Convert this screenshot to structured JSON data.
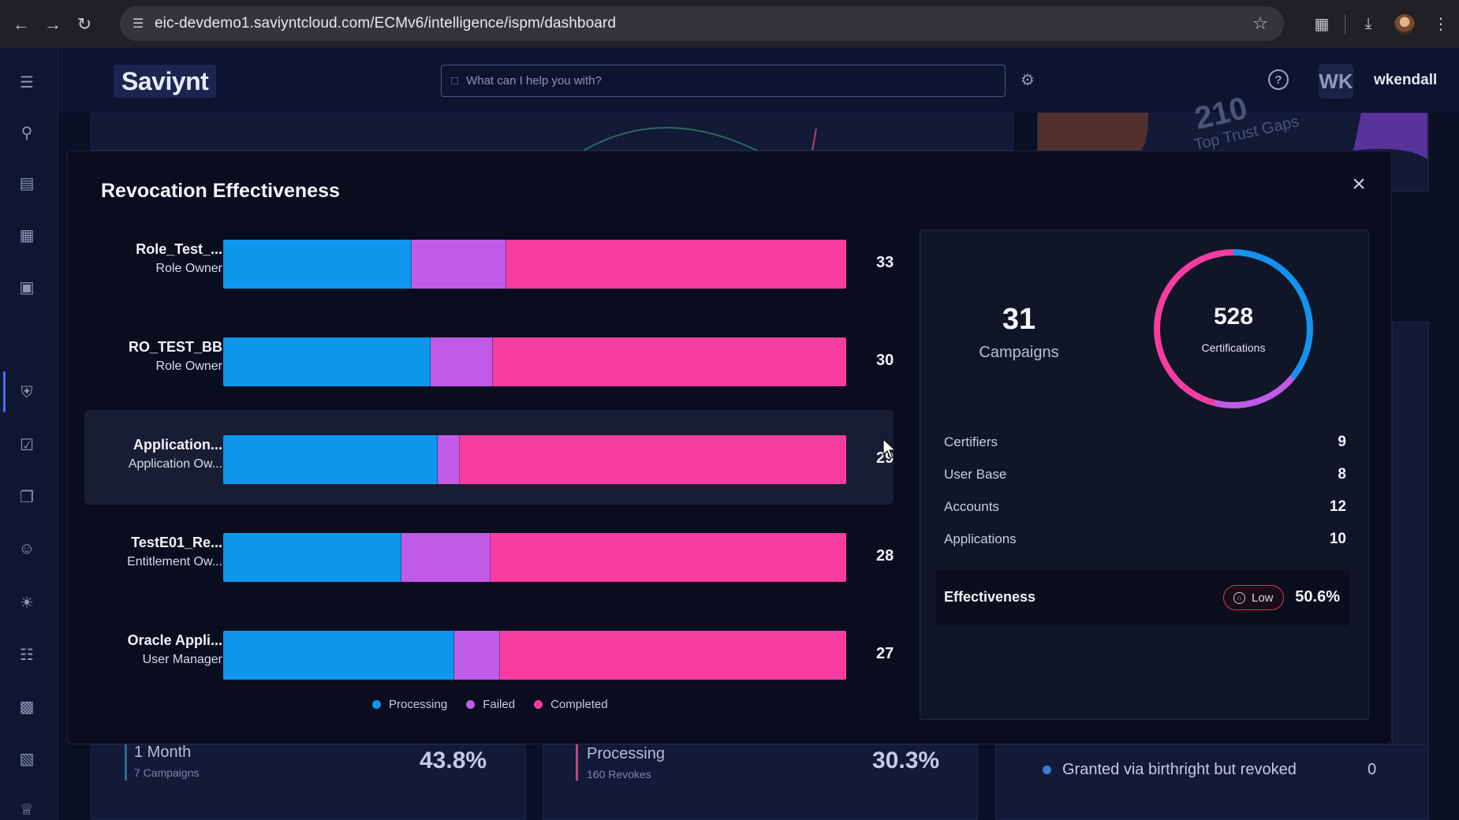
{
  "browser": {
    "url": "eic-devdemo1.saviyntcloud.com/ECMv6/intelligence/ispm/dashboard",
    "icons": [
      "back-icon",
      "forward-icon",
      "reload-icon",
      "site-info-icon",
      "bookmark-star-icon",
      "extensions-icon",
      "download-icon",
      "profile-icon",
      "menu-kebab-icon"
    ]
  },
  "header": {
    "logo": "Saviynt",
    "search_placeholder": "What can I help you with?",
    "avatar_initials": "WK",
    "username": "wkendall"
  },
  "background": {
    "trust_gaps_label": "Top Trust Gaps",
    "trust_gaps_num": "210",
    "bottom_left": {
      "title": "1 Month",
      "sub": "7 Campaigns",
      "pct": "43.8%"
    },
    "bottom_mid": {
      "title": "Processing",
      "sub": "160 Revokes",
      "pct": "30.3%"
    },
    "bottom_right": {
      "label": "Granted via birthright but revoked",
      "value": "0"
    }
  },
  "modal": {
    "title": "Revocation Effectiveness",
    "close_label": "×"
  },
  "chart_data": {
    "type": "bar",
    "orientation": "horizontal",
    "stacked": true,
    "categories": [
      "Role_Test_...",
      "RO_TEST_BB",
      "Application...",
      "TestE01_Re...",
      "Oracle Appli..."
    ],
    "subtitles": [
      "Role Owner",
      "Role Owner",
      "Application Ow...",
      "Entitlement Ow...",
      "User Manager"
    ],
    "totals": [
      "33",
      "30",
      "29",
      "28",
      "27"
    ],
    "series": [
      {
        "name": "Processing",
        "color": "#0d97ec",
        "values": [
          10,
          10,
          10,
          8,
          10
        ]
      },
      {
        "name": "Failed",
        "color": "#c25ae8",
        "values": [
          5,
          3,
          1,
          4,
          2
        ]
      },
      {
        "name": "Completed",
        "color": "#f73c9f",
        "values": [
          18,
          17,
          18,
          16,
          15
        ]
      }
    ],
    "highlighted_index": 2,
    "legend": [
      "Processing",
      "Failed",
      "Completed"
    ]
  },
  "summary": {
    "campaigns_count": "31",
    "campaigns_label": "Campaigns",
    "certifications_count": "528",
    "certifications_label": "Certifications",
    "donut_series": [
      {
        "name": "Processing",
        "color": "#1493ee",
        "value": 0.36
      },
      {
        "name": "Failed",
        "color": "#c25ae8",
        "value": 0.18
      },
      {
        "name": "Completed",
        "color": "#f73c9f",
        "value": 0.46
      }
    ],
    "stats": [
      {
        "label": "Certifiers",
        "value": "9"
      },
      {
        "label": "User Base",
        "value": "8"
      },
      {
        "label": "Accounts",
        "value": "12"
      },
      {
        "label": "Applications",
        "value": "10"
      }
    ],
    "effectiveness_label": "Effectiveness",
    "effectiveness_badge": "Low",
    "effectiveness_value": "50.6%"
  }
}
